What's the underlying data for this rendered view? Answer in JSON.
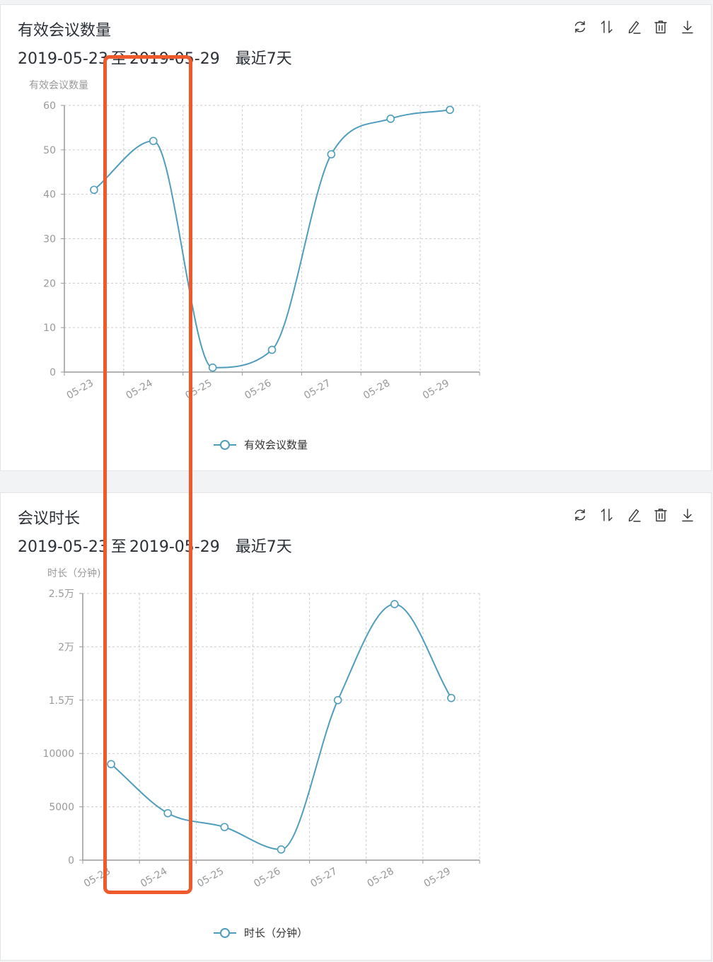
{
  "panels": [
    {
      "title": "有效会议数量",
      "range_start": "2019-05-23",
      "range_sep": "至",
      "range_end": "2019-05-29",
      "recent": "最近7天",
      "toolbar": [
        "refresh-icon",
        "sort-icon",
        "edit-icon",
        "delete-icon",
        "download-icon"
      ]
    },
    {
      "title": "会议时长",
      "range_start": "2019-05-23",
      "range_sep": "至",
      "range_end": "2019-05-29",
      "recent": "最近7天",
      "toolbar": [
        "refresh-icon",
        "sort-icon",
        "edit-icon",
        "delete-icon",
        "download-icon"
      ]
    }
  ],
  "colors": {
    "series": "#4e9dbd",
    "highlight": "#ee5a2b",
    "axis": "#9a9a9a",
    "grid": "#cccccc"
  },
  "chart_data": [
    {
      "type": "line",
      "ylabel": "有效会议数量",
      "categories": [
        "05-23",
        "05-24",
        "05-25",
        "05-26",
        "05-27",
        "05-28",
        "05-29"
      ],
      "series": [
        {
          "name": "有效会议数量",
          "values": [
            41,
            52,
            1,
            5,
            49,
            57,
            59
          ]
        }
      ],
      "ylim": [
        0,
        60
      ],
      "yticks": [
        "0",
        "10",
        "20",
        "30",
        "40",
        "50",
        "60"
      ],
      "smooth": true,
      "grid": true,
      "legend": "bottom"
    },
    {
      "type": "line",
      "ylabel": "时长（分钟)",
      "categories": [
        "05-23",
        "05-24",
        "05-25",
        "05-26",
        "05-27",
        "05-28",
        "05-29"
      ],
      "series": [
        {
          "name": "时长（分钟）",
          "values": [
            9000,
            4400,
            3100,
            1000,
            15000,
            24000,
            15200
          ]
        }
      ],
      "ylim": [
        0,
        25000
      ],
      "yticks": [
        "0",
        "5000",
        "10000",
        "1.5万",
        "2万",
        "2.5万"
      ],
      "smooth": true,
      "grid": true,
      "legend": "bottom"
    }
  ]
}
